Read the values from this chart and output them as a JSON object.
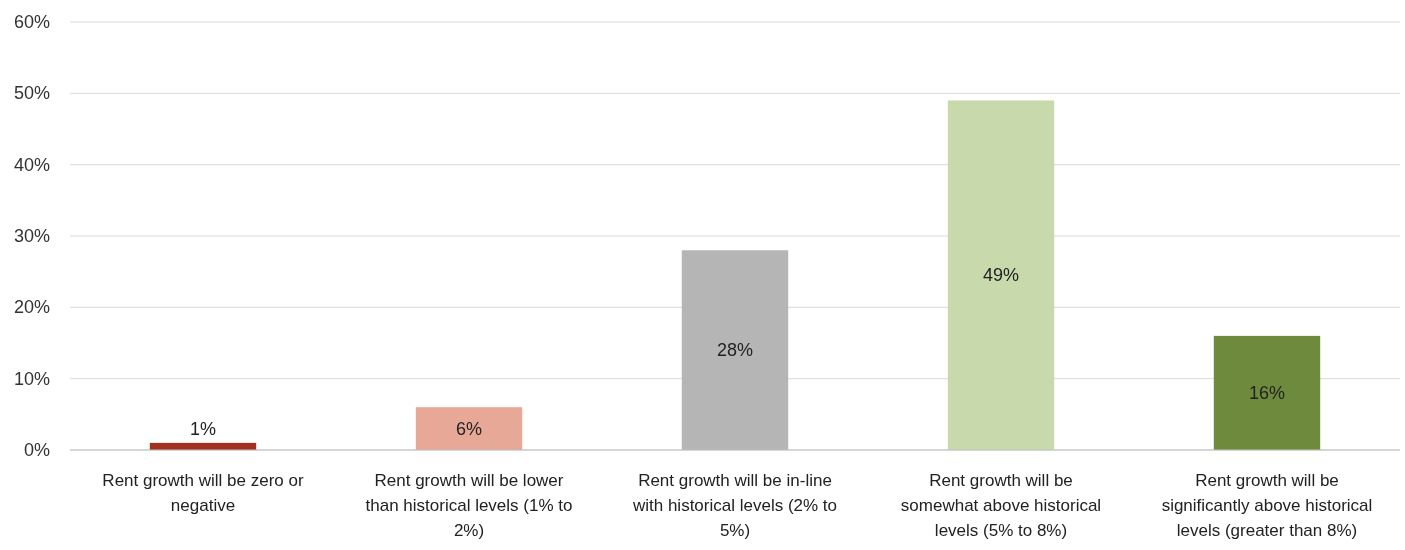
{
  "chart_data": {
    "type": "bar",
    "categories": [
      "Rent growth will be zero or negative",
      "Rent growth will be lower than historical levels (1% to 2%)",
      "Rent growth will be in-line with historical levels (2% to 5%)",
      "Rent growth will be somewhat above historical levels (5% to 8%)",
      "Rent growth will be significantly above historical levels (greater than 8%)"
    ],
    "values": [
      1,
      6,
      28,
      49,
      16
    ],
    "colors": [
      "#a0311f",
      "#e8a898",
      "#b5b5b5",
      "#c8d9ac",
      "#6e8b3d"
    ],
    "ylim": [
      0,
      60
    ],
    "yticks": [
      {
        "value": 0,
        "label": "0%"
      },
      {
        "value": 10,
        "label": "10%"
      },
      {
        "value": 20,
        "label": "20%"
      },
      {
        "value": 30,
        "label": "30%"
      },
      {
        "value": 40,
        "label": "40%"
      },
      {
        "value": 50,
        "label": "50%"
      },
      {
        "value": 60,
        "label": "60%"
      }
    ],
    "value_labels": [
      "1%",
      "6%",
      "28%",
      "49%",
      "16%"
    ],
    "grid": "y"
  }
}
